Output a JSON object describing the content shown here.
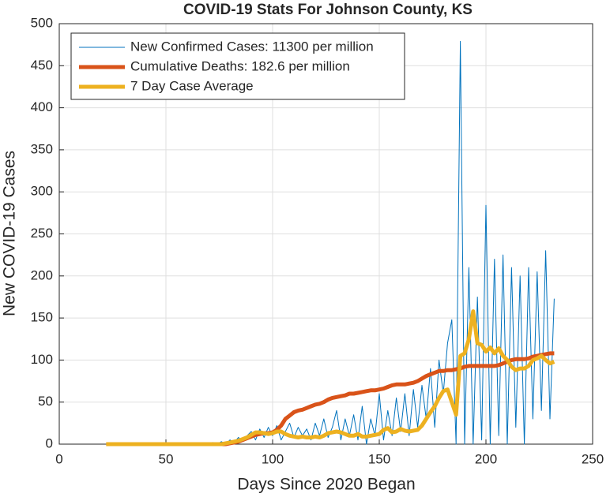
{
  "chart_data": {
    "type": "line",
    "title": "COVID-19 Stats For Johnson County, KS",
    "x_label": "Days Since 2020 Began",
    "y_label": "New COVID-19 Cases",
    "x": [
      22,
      24,
      26,
      28,
      30,
      32,
      34,
      36,
      38,
      40,
      42,
      44,
      46,
      48,
      50,
      52,
      54,
      56,
      58,
      60,
      62,
      64,
      66,
      68,
      70,
      72,
      74,
      76,
      78,
      80,
      82,
      84,
      86,
      88,
      90,
      92,
      94,
      96,
      98,
      100,
      102,
      104,
      106,
      108,
      110,
      112,
      114,
      116,
      118,
      120,
      122,
      124,
      126,
      128,
      130,
      132,
      134,
      136,
      138,
      140,
      142,
      144,
      146,
      148,
      150,
      152,
      154,
      156,
      158,
      160,
      162,
      164,
      166,
      168,
      170,
      172,
      174,
      176,
      178,
      180,
      182,
      184,
      186,
      188,
      190,
      192,
      194,
      196,
      198,
      200,
      202,
      204,
      206,
      208,
      210,
      212,
      214,
      216,
      218,
      220,
      222,
      224,
      226,
      228,
      230,
      232
    ],
    "series": [
      {
        "name": "New Confirmed Cases: 11300 per million",
        "color": "#0072BD",
        "width": 1,
        "values": [
          0,
          0,
          0,
          0,
          0,
          0,
          0,
          0,
          0,
          0,
          0,
          0,
          0,
          0,
          0,
          0,
          0,
          0,
          0,
          0,
          0,
          0,
          0,
          0,
          0,
          2,
          0,
          3,
          0,
          5,
          2,
          8,
          3,
          10,
          15,
          5,
          18,
          8,
          20,
          10,
          22,
          5,
          15,
          25,
          8,
          20,
          10,
          18,
          5,
          25,
          10,
          30,
          8,
          20,
          40,
          5,
          30,
          10,
          35,
          5,
          45,
          0,
          30,
          10,
          60,
          5,
          40,
          10,
          55,
          15,
          60,
          10,
          65,
          20,
          70,
          30,
          90,
          20,
          100,
          60,
          120,
          148,
          0,
          479,
          0,
          210,
          0,
          175,
          5,
          284,
          0,
          220,
          10,
          225,
          0,
          210,
          20,
          200,
          0,
          210,
          30,
          205,
          40,
          230,
          30,
          173
        ]
      },
      {
        "name": "Cumulative Deaths: 182.6 per million",
        "color": "#D95319",
        "width": 5,
        "values": [
          0,
          0,
          0,
          0,
          0,
          0,
          0,
          0,
          0,
          0,
          0,
          0,
          0,
          0,
          0,
          0,
          0,
          0,
          0,
          0,
          0,
          0,
          0,
          0,
          0,
          0,
          0,
          0,
          0,
          1,
          2,
          3,
          5,
          7,
          9,
          11,
          12,
          13,
          13,
          14,
          17,
          22,
          30,
          34,
          38,
          40,
          41,
          43,
          45,
          47,
          48,
          50,
          53,
          55,
          56,
          57,
          58,
          60,
          60,
          61,
          62,
          63,
          64,
          64,
          65,
          66,
          68,
          70,
          71,
          71,
          71,
          72,
          73,
          75,
          78,
          81,
          83,
          85,
          87,
          87,
          88,
          88,
          89,
          90,
          92,
          93,
          93,
          93,
          93,
          93,
          93,
          93,
          94,
          96,
          98,
          100,
          101,
          101,
          101,
          102,
          104,
          105,
          106,
          107,
          108,
          108
        ]
      },
      {
        "name": "7 Day Case Average",
        "color": "#EDB120",
        "width": 5,
        "values": [
          0,
          0,
          0,
          0,
          0,
          0,
          0,
          0,
          0,
          0,
          0,
          0,
          0,
          0,
          0,
          0,
          0,
          0,
          0,
          0,
          0,
          0,
          0,
          0,
          0,
          0,
          0,
          0,
          1,
          2,
          3,
          4,
          6,
          8,
          11,
          14,
          14,
          13,
          12,
          13,
          15,
          15,
          12,
          10,
          9,
          8,
          9,
          8,
          8,
          9,
          8,
          10,
          13,
          14,
          15,
          14,
          12,
          10,
          10,
          12,
          9,
          9,
          10,
          11,
          12,
          17,
          19,
          14,
          15,
          18,
          16,
          15,
          16,
          17,
          22,
          30,
          38,
          45,
          55,
          63,
          65,
          50,
          35,
          105,
          108,
          125,
          158,
          120,
          118,
          110,
          115,
          108,
          114,
          105,
          100,
          92,
          88,
          90,
          90,
          93,
          100,
          102,
          105,
          100,
          96,
          98
        ]
      }
    ],
    "xlim": [
      0,
      250
    ],
    "xticks": [
      0,
      50,
      100,
      150,
      200,
      250
    ],
    "ylim": [
      0,
      500
    ],
    "yticks": [
      0,
      50,
      100,
      150,
      200,
      250,
      300,
      350,
      400,
      450,
      500
    ],
    "grid": true,
    "legend": "northwest"
  }
}
